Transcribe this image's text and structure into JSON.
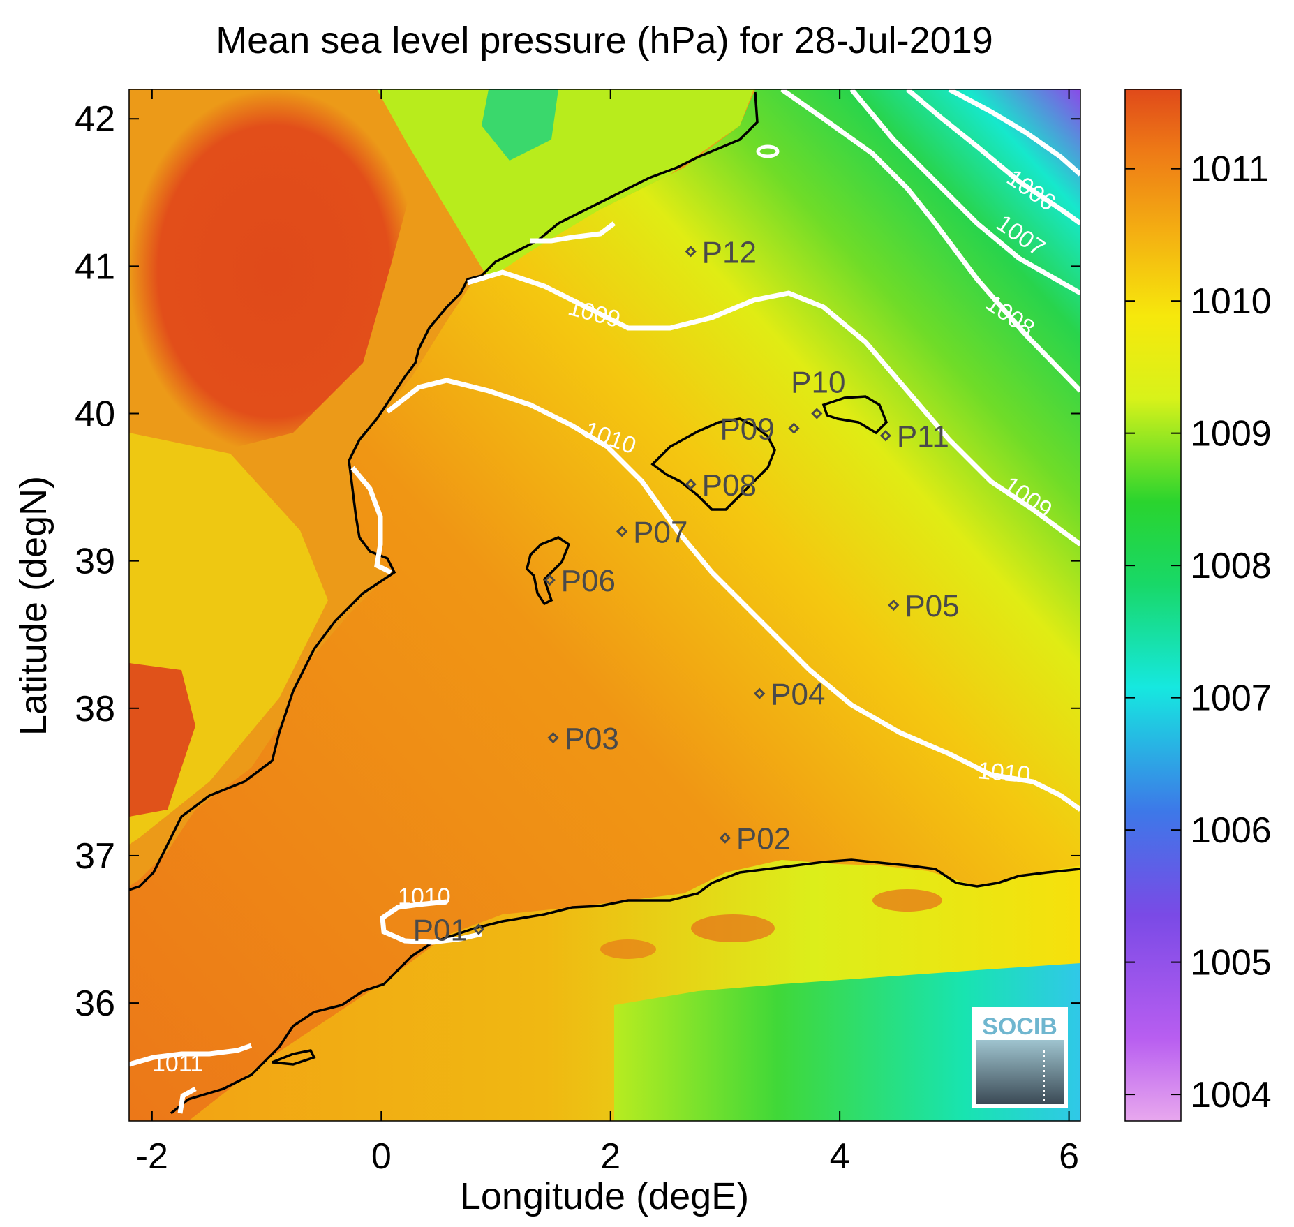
{
  "title": "Mean sea level pressure (hPa) for 28-Jul-2019",
  "axes": {
    "xlabel": "Longitude (degE)",
    "ylabel": "Latitude (degN)",
    "xlim": [
      -2.2,
      6.1
    ],
    "ylim": [
      35.2,
      42.2
    ],
    "xticks": [
      -2,
      0,
      2,
      4,
      6
    ],
    "yticks": [
      36,
      37,
      38,
      39,
      40,
      41,
      42
    ]
  },
  "colorbar": {
    "range": [
      1003.8,
      1011.6
    ],
    "ticks": [
      1004,
      1005,
      1006,
      1007,
      1008,
      1009,
      1010,
      1011
    ],
    "stops": [
      "#e8a8ee",
      "#b85ef0",
      "#7a4ae6",
      "#3d78e8",
      "#16e8e0",
      "#18d868",
      "#2ad42e",
      "#d8f21a",
      "#f6e80c",
      "#f4b012",
      "#ee7a16",
      "#e04a1a"
    ]
  },
  "contour_labels": [
    "1006",
    "1007",
    "1008",
    "1009",
    "1009",
    "1010",
    "1010",
    "1010",
    "1011"
  ],
  "points": [
    {
      "name": "P01",
      "lon": 0.85,
      "lat": 36.5
    },
    {
      "name": "P02",
      "lon": 3.0,
      "lat": 37.12
    },
    {
      "name": "P03",
      "lon": 1.5,
      "lat": 37.8
    },
    {
      "name": "P04",
      "lon": 3.3,
      "lat": 38.1
    },
    {
      "name": "P05",
      "lon": 4.47,
      "lat": 38.7
    },
    {
      "name": "P06",
      "lon": 1.47,
      "lat": 38.87
    },
    {
      "name": "P07",
      "lon": 2.1,
      "lat": 39.2
    },
    {
      "name": "P08",
      "lon": 2.7,
      "lat": 39.52
    },
    {
      "name": "P09",
      "lon": 3.6,
      "lat": 39.9
    },
    {
      "name": "P10",
      "lon": 3.8,
      "lat": 40.0
    },
    {
      "name": "P11",
      "lon": 4.4,
      "lat": 39.85
    },
    {
      "name": "P12",
      "lon": 2.7,
      "lat": 41.1
    }
  ],
  "logo_text": "SOCIB"
}
